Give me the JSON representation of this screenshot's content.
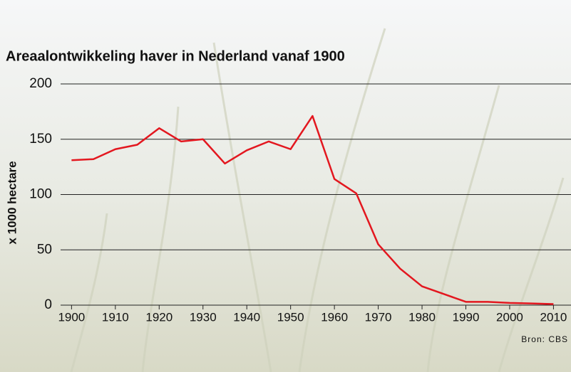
{
  "chart_data": {
    "type": "line",
    "title": "Areaalontwikkeling haver in Nederland vanaf 1900",
    "ylabel": "x 1000 hectare",
    "source": "Bron: CBS",
    "x": [
      1900,
      1905,
      1910,
      1915,
      1920,
      1925,
      1930,
      1935,
      1940,
      1945,
      1950,
      1955,
      1960,
      1965,
      1970,
      1975,
      1980,
      1985,
      1990,
      1995,
      2000,
      2005,
      2010
    ],
    "series": [
      {
        "color": "#e3171f",
        "values": [
          131,
          132,
          141,
          145,
          160,
          148,
          150,
          128,
          140,
          148,
          141,
          171,
          114,
          101,
          55,
          33,
          17,
          10,
          3,
          3,
          2,
          1.5,
          1
        ]
      }
    ],
    "xlim": [
      1897.5,
      2014
    ],
    "xticks": [
      1900,
      1910,
      1920,
      1930,
      1940,
      1950,
      1960,
      1970,
      1980,
      1990,
      2000,
      2010
    ],
    "ylim": [
      0,
      200
    ],
    "yticks": [
      0,
      50,
      100,
      150,
      200
    ],
    "grid": true
  }
}
